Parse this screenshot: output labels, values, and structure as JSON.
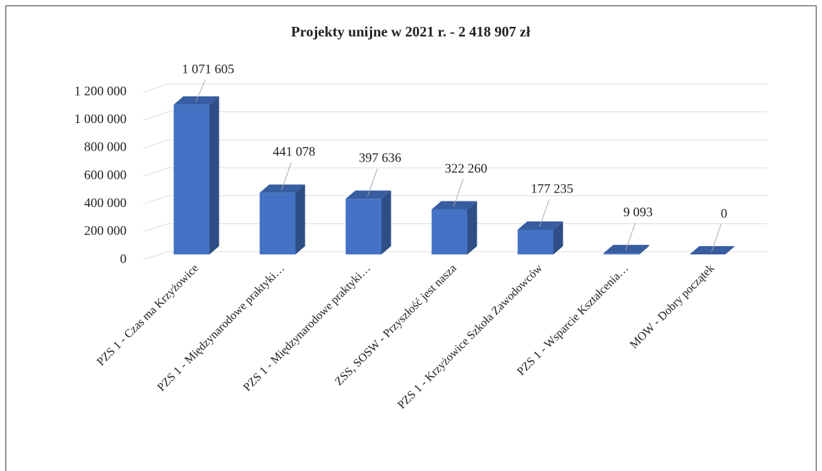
{
  "chart_data": {
    "type": "bar3d",
    "title": "Projekty unijne w 2021 r. - 2 418 907 zł",
    "categories": [
      "PZS 1 - Czas ma Krzyżowice",
      "PZS 1 - Międzynarodowe praktyki…",
      "PZS 1 - Międzynarodowe praktyki…",
      "ZSS, SOSW - Przyszłość jest nasza",
      "PZS 1 - Krzyżowice Szkoła Zawodowców",
      "PZS 1 - Wsparcie Kształcenia…",
      "MOW - Dobry początek"
    ],
    "values": [
      1071605,
      441078,
      397636,
      322260,
      177235,
      9093,
      0
    ],
    "value_labels": [
      "1 071 605",
      "441 078",
      "397 636",
      "322 260",
      "177 235",
      "9 093",
      "0"
    ],
    "color": "#4472c4",
    "ylim": [
      0,
      1200000
    ],
    "yticks": [
      0,
      {
        "value": 200000,
        "label": "200 000"
      },
      {
        "value": 400000,
        "label": "400 000"
      },
      {
        "value": 600000,
        "label": "600 000"
      },
      {
        "value": 800000,
        "label": "800 000"
      },
      {
        "value": 1000000,
        "label": "1 000 000"
      },
      {
        "value": 1200000,
        "label": "1 200 000"
      }
    ],
    "grid": true
  }
}
